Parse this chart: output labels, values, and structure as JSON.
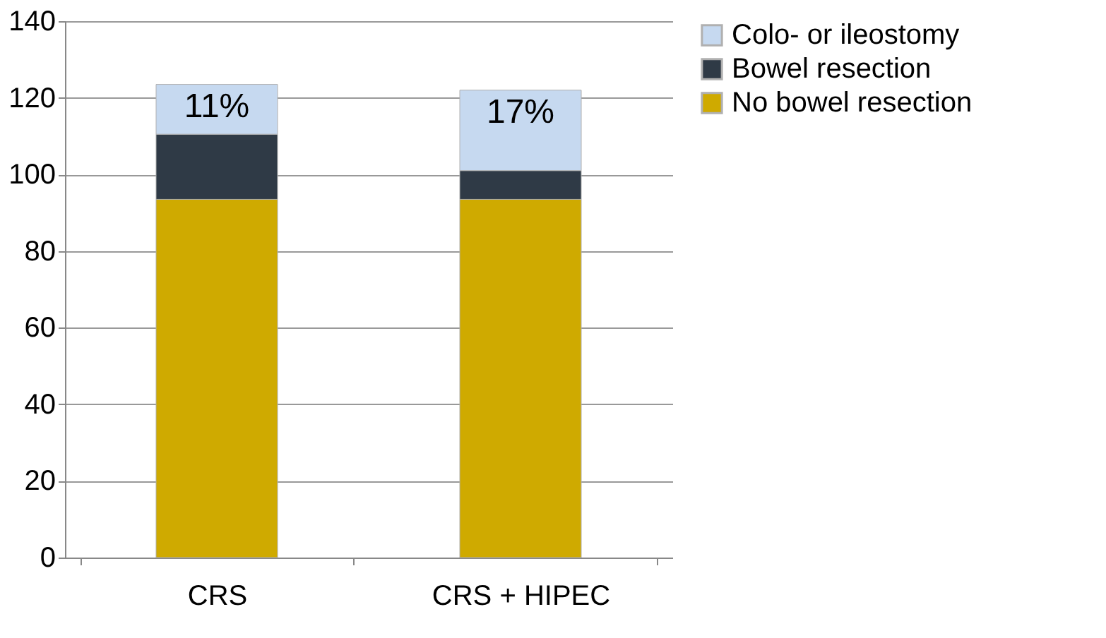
{
  "chart_data": {
    "type": "bar",
    "stacked": true,
    "categories": [
      "CRS",
      "CRS + HIPEC"
    ],
    "series": [
      {
        "name": "No bowel resection",
        "color": "#cfaa00",
        "values": [
          93.5,
          93.5
        ]
      },
      {
        "name": "Bowel resection",
        "color": "#2f3a46",
        "values": [
          17,
          7.5
        ]
      },
      {
        "name": "Colo- or ileostomy",
        "color": "#c6d9f0",
        "values": [
          13,
          21
        ]
      }
    ],
    "ylim": [
      0,
      140
    ],
    "yticks": [
      0,
      20,
      40,
      60,
      80,
      100,
      120,
      140
    ],
    "grid": "y",
    "legend": "right",
    "annotations": [
      "11%",
      "17%"
    ]
  }
}
